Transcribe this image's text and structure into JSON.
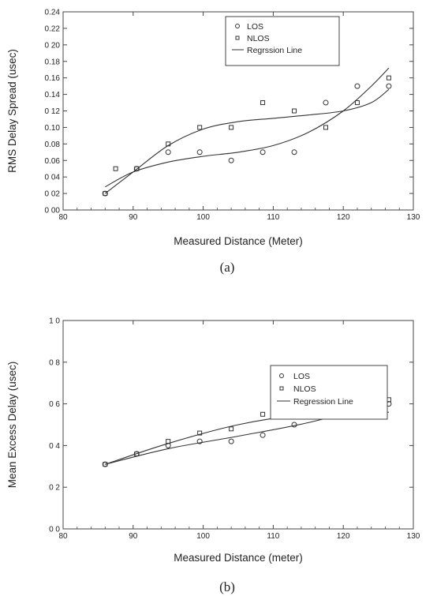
{
  "chart_data": [
    {
      "type": "scatter",
      "panel_caption": "(a)",
      "xlabel": "Measured Distance (Meter)",
      "ylabel": "RMS Delay Spread (usec)",
      "xlim": [
        80,
        130
      ],
      "ylim": [
        0.0,
        0.24
      ],
      "x_ticks": [
        80,
        90,
        100,
        110,
        120,
        130
      ],
      "x_tick_labels": [
        "80",
        "90",
        "100",
        "110",
        "120",
        "130"
      ],
      "y_ticks": [
        0.0,
        0.02,
        0.04,
        0.06,
        0.08,
        0.1,
        0.12,
        0.14,
        0.16,
        0.18,
        0.2,
        0.22,
        0.24
      ],
      "y_tick_labels": [
        "0 00",
        "0 02",
        "0 04",
        "0.06",
        "0.08",
        "0.10",
        "0 12",
        "0.14",
        "0.16",
        "0.18",
        "0 20",
        "0.22",
        "0.24"
      ],
      "legend": {
        "position": "top-right",
        "los_label": "LOS",
        "nlos_label": "NLOS",
        "regression_label": "Regrssion Line"
      },
      "series": [
        {
          "name": "LOS",
          "marker": "circle",
          "x": [
            86,
            90.5,
            95,
            99.5,
            104,
            108.5,
            113,
            117.5,
            122,
            126.5
          ],
          "y": [
            0.02,
            0.05,
            0.07,
            0.07,
            0.06,
            0.07,
            0.07,
            0.13,
            0.15,
            0.15
          ]
        },
        {
          "name": "NLOS",
          "marker": "square",
          "x": [
            86,
            87.5,
            90.5,
            95,
            99.5,
            104,
            108.5,
            113,
            117.5,
            122,
            126.5
          ],
          "y": [
            0.02,
            0.05,
            0.05,
            0.08,
            0.1,
            0.1,
            0.13,
            0.12,
            0.1,
            0.13,
            0.16
          ]
        }
      ],
      "regression": [
        {
          "series": "LOS",
          "x": [
            86,
            90,
            95,
            100,
            105,
            110,
            115,
            120,
            124,
            126.5
          ],
          "y": [
            0.028,
            0.046,
            0.058,
            0.065,
            0.07,
            0.078,
            0.094,
            0.12,
            0.15,
            0.172
          ]
        },
        {
          "series": "NLOS",
          "x": [
            86,
            90,
            95,
            100,
            105,
            110,
            115,
            120,
            124,
            126.5
          ],
          "y": [
            0.02,
            0.046,
            0.078,
            0.098,
            0.107,
            0.111,
            0.115,
            0.12,
            0.13,
            0.146
          ]
        }
      ]
    },
    {
      "type": "scatter",
      "panel_caption": "(b)",
      "xlabel": "Measured Distance (meter)",
      "ylabel": "Mean Excess Delay (usec)",
      "xlim": [
        80,
        130
      ],
      "ylim": [
        0.0,
        1.0
      ],
      "x_ticks": [
        80,
        90,
        100,
        110,
        120,
        130
      ],
      "x_tick_labels": [
        "80",
        "90",
        "100",
        "110",
        "120",
        "130"
      ],
      "y_ticks": [
        0.0,
        0.2,
        0.4,
        0.6,
        0.8,
        1.0
      ],
      "y_tick_labels": [
        "0 0",
        "0 2",
        "0 4",
        "0 6",
        "0 8",
        "1 0"
      ],
      "legend": {
        "position": "top-right",
        "los_label": "LOS",
        "nlos_label": "NLOS",
        "regression_label": "Regression Line"
      },
      "series": [
        {
          "name": "LOS",
          "marker": "circle",
          "x": [
            86,
            90.5,
            95,
            99.5,
            104,
            108.5,
            113,
            117.5,
            122,
            126.5
          ],
          "y": [
            0.31,
            0.36,
            0.4,
            0.42,
            0.42,
            0.45,
            0.5,
            0.55,
            0.56,
            0.6
          ]
        },
        {
          "name": "NLOS",
          "marker": "square",
          "x": [
            86,
            90.5,
            95,
            99.5,
            104,
            108.5,
            113,
            117.5,
            122,
            126.5
          ],
          "y": [
            0.31,
            0.36,
            0.42,
            0.46,
            0.48,
            0.55,
            0.54,
            0.57,
            0.58,
            0.62
          ]
        }
      ],
      "regression": [
        {
          "series": "LOS",
          "x": [
            86,
            95,
            105,
            115,
            126.5
          ],
          "y": [
            0.31,
            0.385,
            0.445,
            0.51,
            0.61
          ]
        },
        {
          "series": "NLOS",
          "x": [
            86,
            95,
            105,
            115,
            126.5
          ],
          "y": [
            0.31,
            0.41,
            0.5,
            0.55,
            0.56
          ]
        }
      ]
    }
  ]
}
